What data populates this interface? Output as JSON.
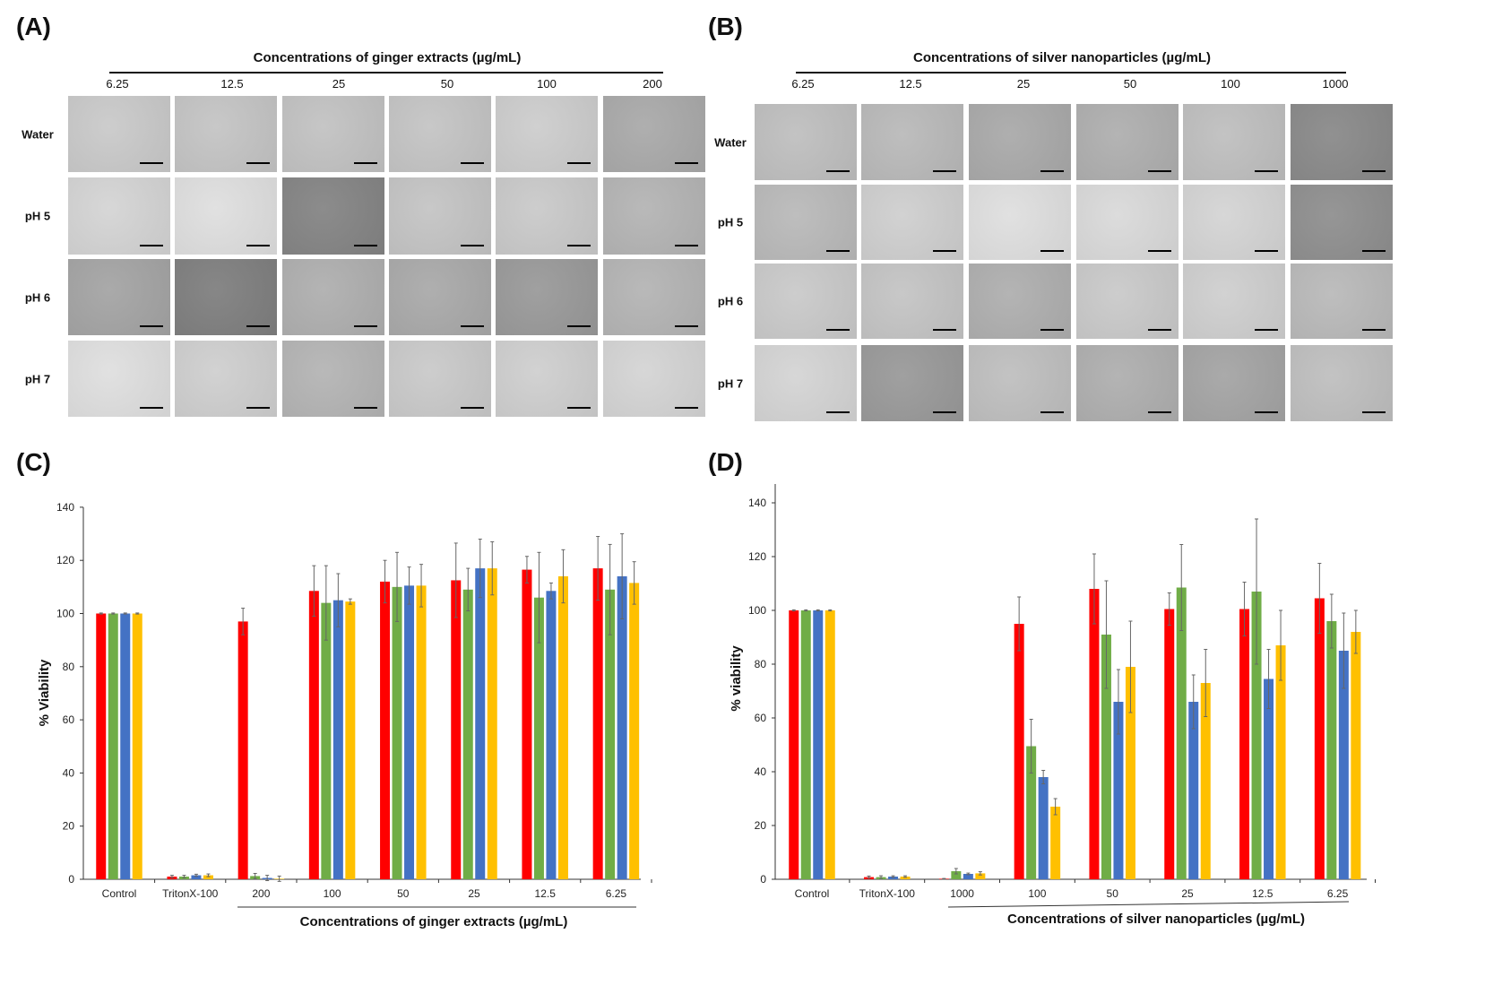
{
  "panel_a": {
    "label": "(A)",
    "title": "Concentrations of ginger extracts (µg/mL)",
    "columns": [
      "6.25",
      "12.5",
      "25",
      "50",
      "100",
      "200"
    ],
    "rows": [
      "Water",
      "pH 5",
      "pH 6",
      "pH 7"
    ]
  },
  "panel_b": {
    "label": "(B)",
    "title": "Concentrations of silver nanoparticles (µg/mL)",
    "columns": [
      "6.25",
      "12.5",
      "25",
      "50",
      "100",
      "1000"
    ],
    "rows": [
      "Water",
      "pH 5",
      "pH 6",
      "pH 7"
    ]
  },
  "panel_c_label": "(C)",
  "panel_d_label": "(D)",
  "series_colors": [
    "#ff0000",
    "#70ad47",
    "#4472c4",
    "#ffc000"
  ],
  "chart_data": [
    {
      "type": "bar",
      "ylabel": "% Viability",
      "xlabel": "Concentrations of ginger extracts (µg/mL)",
      "ylim": [
        0,
        140
      ],
      "yticks": [
        0,
        20,
        40,
        60,
        80,
        100,
        120,
        140
      ],
      "grid": false,
      "categories": [
        "Control",
        "TritonX-100",
        "200",
        "100",
        "50",
        "25",
        "12.5",
        "6.25"
      ],
      "series": [
        {
          "values": [
            100,
            1,
            97,
            108.5,
            112,
            112.5,
            116.5,
            117
          ],
          "errors": [
            0.2,
            0.5,
            5,
            9.5,
            8,
            14,
            5,
            12
          ]
        },
        {
          "values": [
            100,
            1,
            1.2,
            104,
            110,
            109,
            106,
            109
          ],
          "errors": [
            0.2,
            0.5,
            1,
            14,
            13,
            8,
            17,
            17
          ]
        },
        {
          "values": [
            100,
            1.5,
            0.5,
            105,
            110.5,
            117,
            108.5,
            114
          ],
          "errors": [
            0.2,
            0.4,
            1,
            10,
            7,
            11,
            3,
            16
          ]
        },
        {
          "values": [
            100,
            1.5,
            0.2,
            104.5,
            110.5,
            117,
            114,
            111.5
          ],
          "errors": [
            0.2,
            0.5,
            1,
            1,
            8,
            10,
            10,
            8
          ]
        }
      ]
    },
    {
      "type": "bar",
      "ylabel": "% viability",
      "xlabel": "Concentrations of silver nanoparticles (µg/mL)",
      "ylim": [
        0,
        140
      ],
      "yticks": [
        0,
        20,
        40,
        60,
        80,
        100,
        120,
        140
      ],
      "grid": false,
      "categories": [
        "Control",
        "TritonX-100",
        "1000",
        "100",
        "50",
        "25",
        "12.5",
        "6.25"
      ],
      "series": [
        {
          "values": [
            100,
            0.8,
            0.2,
            95,
            108,
            100.5,
            100.5,
            104.5
          ],
          "errors": [
            0.2,
            0.4,
            0.1,
            10,
            13,
            6,
            10,
            13
          ]
        },
        {
          "values": [
            100,
            0.8,
            3,
            49.5,
            91,
            108.5,
            107,
            96
          ],
          "errors": [
            0.2,
            0.5,
            1,
            10,
            20,
            16,
            27,
            10
          ]
        },
        {
          "values": [
            100,
            1,
            2,
            38,
            66,
            66,
            74.5,
            85
          ],
          "errors": [
            0.2,
            0.3,
            0.3,
            2.5,
            12,
            10,
            11,
            14
          ]
        },
        {
          "values": [
            100,
            1,
            2.2,
            27,
            79,
            73,
            87,
            92
          ],
          "errors": [
            0.2,
            0.3,
            0.6,
            3,
            17,
            12.5,
            13,
            8
          ]
        }
      ]
    }
  ]
}
